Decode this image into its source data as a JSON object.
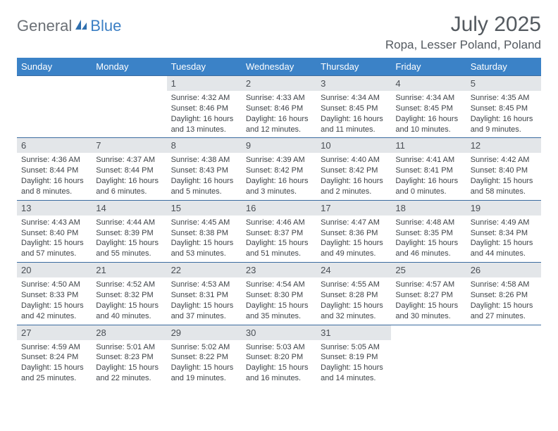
{
  "brand": {
    "text1": "General",
    "text2": "Blue"
  },
  "title": "July 2025",
  "location": "Ropa, Lesser Poland, Poland",
  "day_headers": [
    "Sunday",
    "Monday",
    "Tuesday",
    "Wednesday",
    "Thursday",
    "Friday",
    "Saturday"
  ],
  "colors": {
    "header_bg": "#3b82c7",
    "header_text": "#ffffff",
    "daynum_bg": "#e3e6e9",
    "rule": "#3b6ca0",
    "body_text": "#3e4348",
    "title_text": "#545a60"
  },
  "weeks": [
    [
      null,
      null,
      {
        "n": "1",
        "sr": "4:32 AM",
        "ss": "8:46 PM",
        "dl": "16 hours and 13 minutes."
      },
      {
        "n": "2",
        "sr": "4:33 AM",
        "ss": "8:46 PM",
        "dl": "16 hours and 12 minutes."
      },
      {
        "n": "3",
        "sr": "4:34 AM",
        "ss": "8:45 PM",
        "dl": "16 hours and 11 minutes."
      },
      {
        "n": "4",
        "sr": "4:34 AM",
        "ss": "8:45 PM",
        "dl": "16 hours and 10 minutes."
      },
      {
        "n": "5",
        "sr": "4:35 AM",
        "ss": "8:45 PM",
        "dl": "16 hours and 9 minutes."
      }
    ],
    [
      {
        "n": "6",
        "sr": "4:36 AM",
        "ss": "8:44 PM",
        "dl": "16 hours and 8 minutes."
      },
      {
        "n": "7",
        "sr": "4:37 AM",
        "ss": "8:44 PM",
        "dl": "16 hours and 6 minutes."
      },
      {
        "n": "8",
        "sr": "4:38 AM",
        "ss": "8:43 PM",
        "dl": "16 hours and 5 minutes."
      },
      {
        "n": "9",
        "sr": "4:39 AM",
        "ss": "8:42 PM",
        "dl": "16 hours and 3 minutes."
      },
      {
        "n": "10",
        "sr": "4:40 AM",
        "ss": "8:42 PM",
        "dl": "16 hours and 2 minutes."
      },
      {
        "n": "11",
        "sr": "4:41 AM",
        "ss": "8:41 PM",
        "dl": "16 hours and 0 minutes."
      },
      {
        "n": "12",
        "sr": "4:42 AM",
        "ss": "8:40 PM",
        "dl": "15 hours and 58 minutes."
      }
    ],
    [
      {
        "n": "13",
        "sr": "4:43 AM",
        "ss": "8:40 PM",
        "dl": "15 hours and 57 minutes."
      },
      {
        "n": "14",
        "sr": "4:44 AM",
        "ss": "8:39 PM",
        "dl": "15 hours and 55 minutes."
      },
      {
        "n": "15",
        "sr": "4:45 AM",
        "ss": "8:38 PM",
        "dl": "15 hours and 53 minutes."
      },
      {
        "n": "16",
        "sr": "4:46 AM",
        "ss": "8:37 PM",
        "dl": "15 hours and 51 minutes."
      },
      {
        "n": "17",
        "sr": "4:47 AM",
        "ss": "8:36 PM",
        "dl": "15 hours and 49 minutes."
      },
      {
        "n": "18",
        "sr": "4:48 AM",
        "ss": "8:35 PM",
        "dl": "15 hours and 46 minutes."
      },
      {
        "n": "19",
        "sr": "4:49 AM",
        "ss": "8:34 PM",
        "dl": "15 hours and 44 minutes."
      }
    ],
    [
      {
        "n": "20",
        "sr": "4:50 AM",
        "ss": "8:33 PM",
        "dl": "15 hours and 42 minutes."
      },
      {
        "n": "21",
        "sr": "4:52 AM",
        "ss": "8:32 PM",
        "dl": "15 hours and 40 minutes."
      },
      {
        "n": "22",
        "sr": "4:53 AM",
        "ss": "8:31 PM",
        "dl": "15 hours and 37 minutes."
      },
      {
        "n": "23",
        "sr": "4:54 AM",
        "ss": "8:30 PM",
        "dl": "15 hours and 35 minutes."
      },
      {
        "n": "24",
        "sr": "4:55 AM",
        "ss": "8:28 PM",
        "dl": "15 hours and 32 minutes."
      },
      {
        "n": "25",
        "sr": "4:57 AM",
        "ss": "8:27 PM",
        "dl": "15 hours and 30 minutes."
      },
      {
        "n": "26",
        "sr": "4:58 AM",
        "ss": "8:26 PM",
        "dl": "15 hours and 27 minutes."
      }
    ],
    [
      {
        "n": "27",
        "sr": "4:59 AM",
        "ss": "8:24 PM",
        "dl": "15 hours and 25 minutes."
      },
      {
        "n": "28",
        "sr": "5:01 AM",
        "ss": "8:23 PM",
        "dl": "15 hours and 22 minutes."
      },
      {
        "n": "29",
        "sr": "5:02 AM",
        "ss": "8:22 PM",
        "dl": "15 hours and 19 minutes."
      },
      {
        "n": "30",
        "sr": "5:03 AM",
        "ss": "8:20 PM",
        "dl": "15 hours and 16 minutes."
      },
      {
        "n": "31",
        "sr": "5:05 AM",
        "ss": "8:19 PM",
        "dl": "15 hours and 14 minutes."
      },
      null,
      null
    ]
  ],
  "labels": {
    "sunrise": "Sunrise:",
    "sunset": "Sunset:",
    "daylight": "Daylight:"
  }
}
